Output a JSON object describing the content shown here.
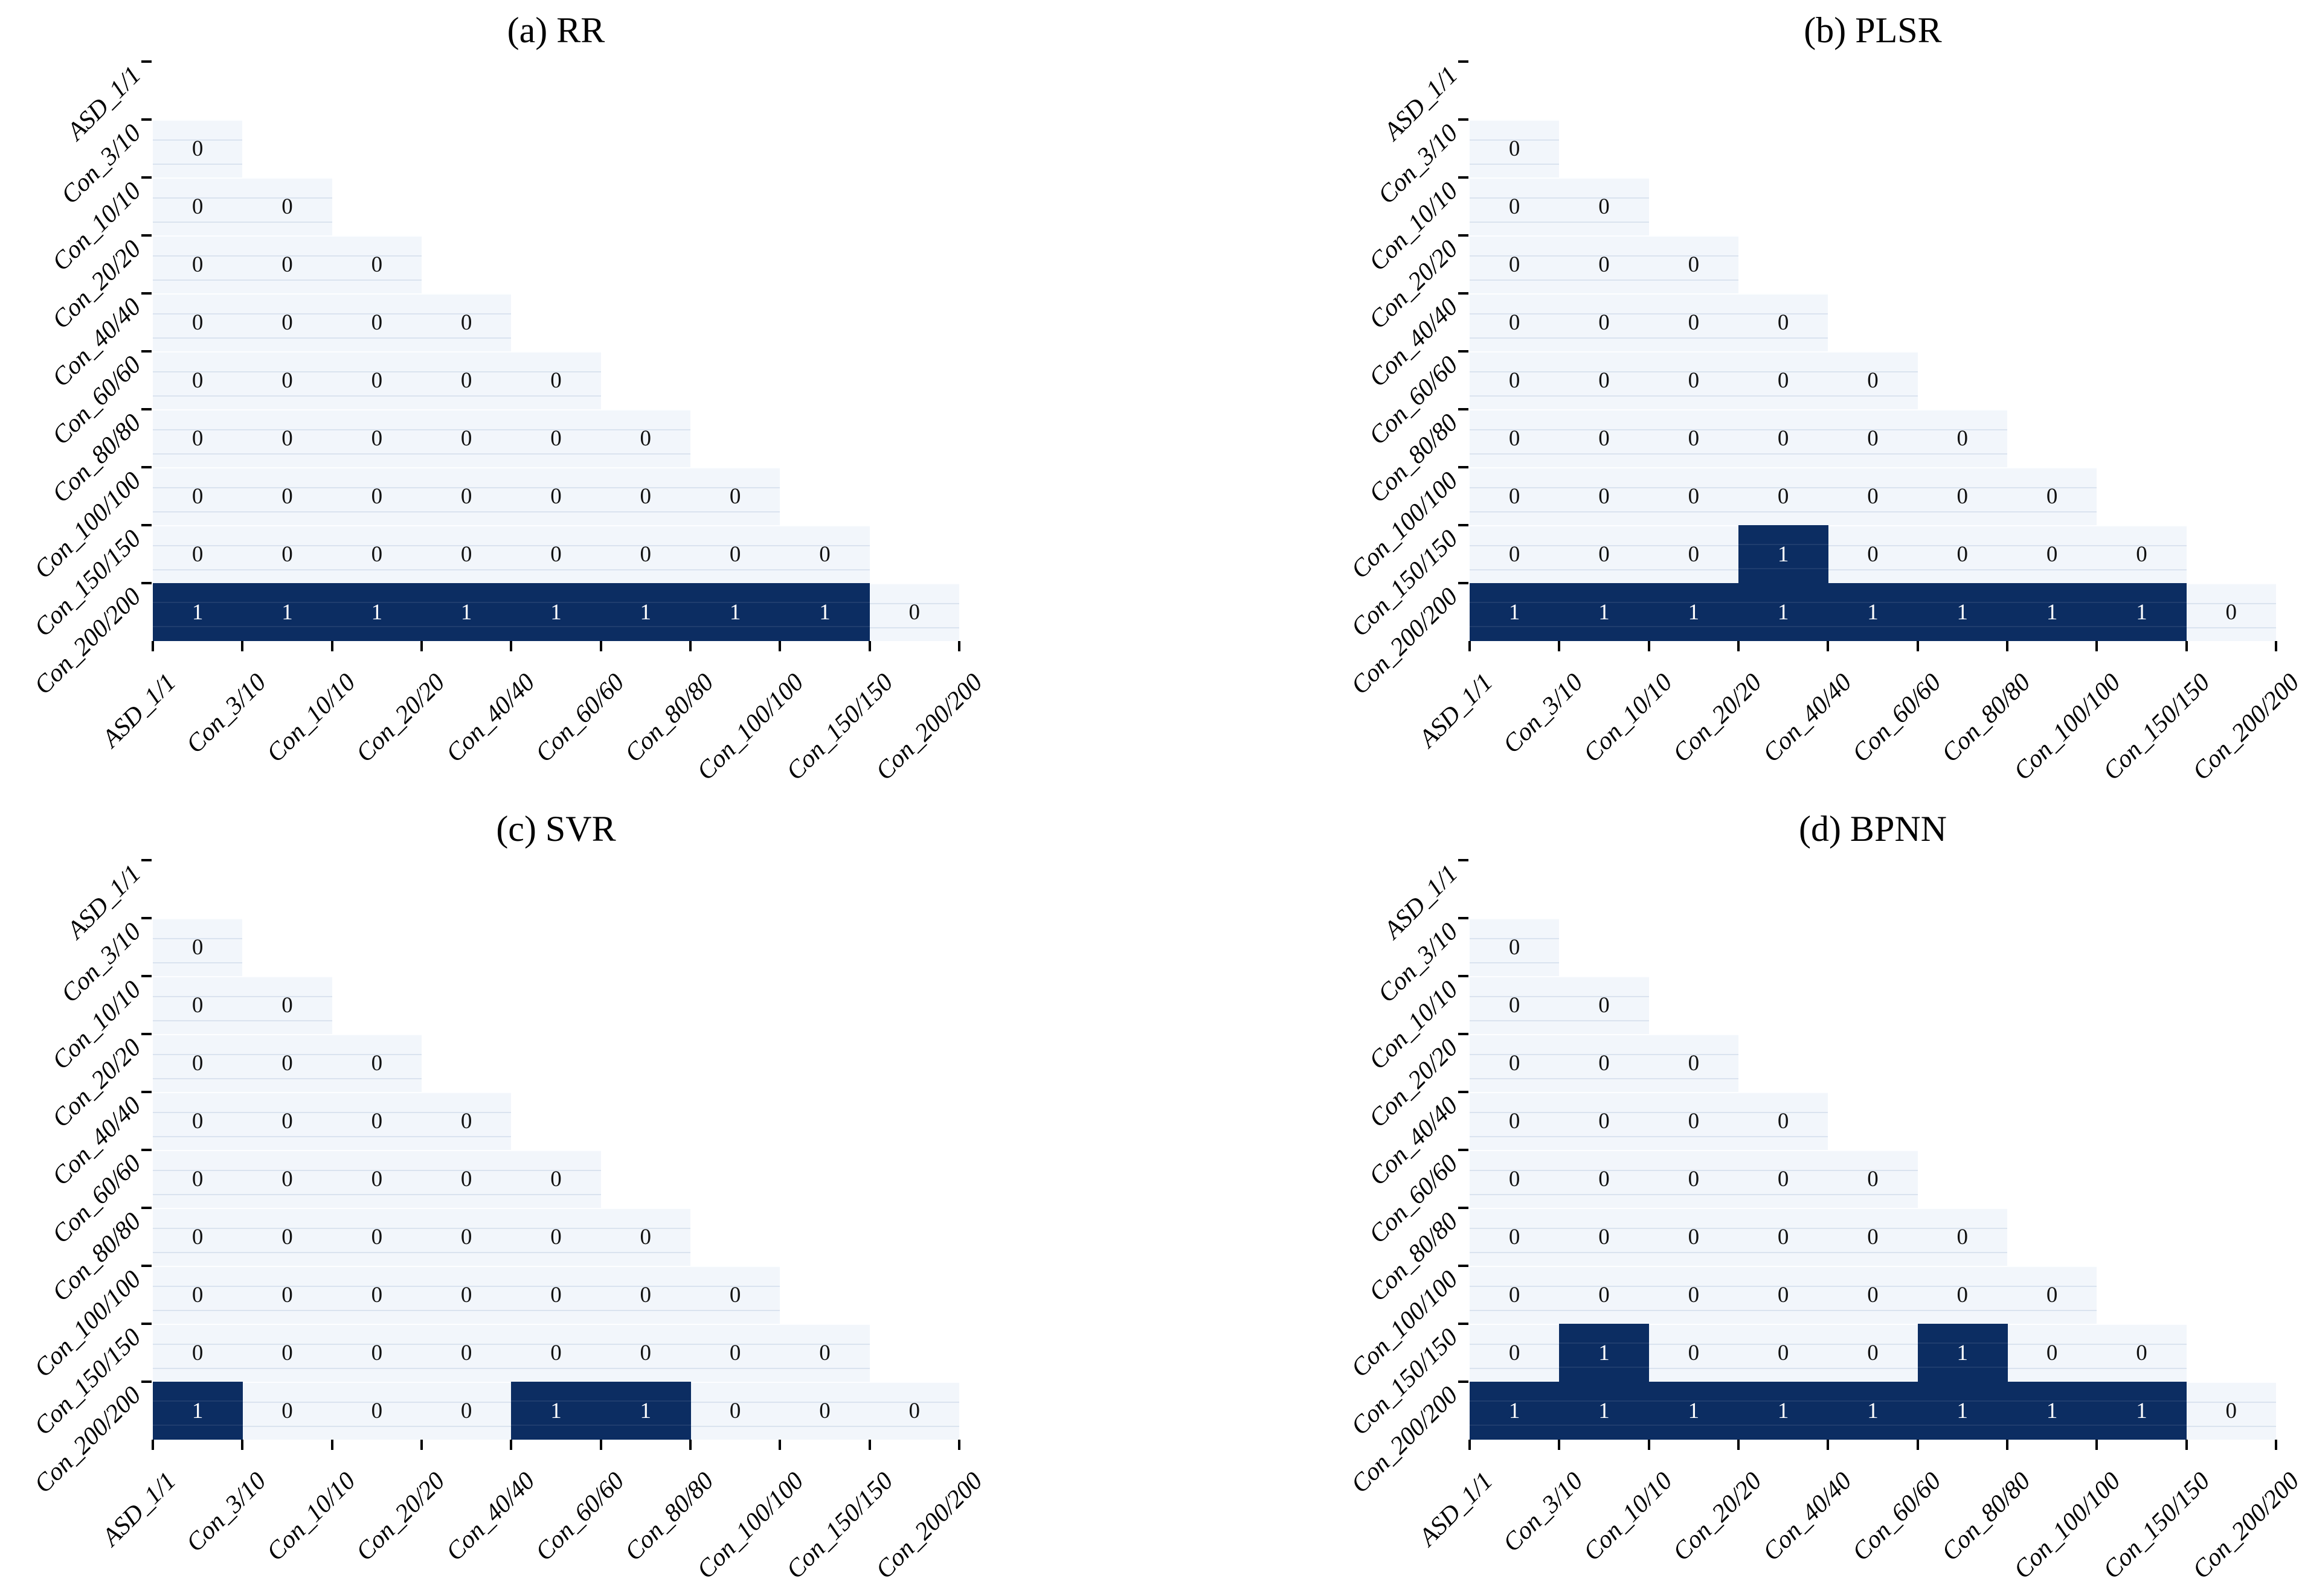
{
  "figure": {
    "background": "#ffffff",
    "panel_titles": [
      "(a) RR",
      "(b) PLSR",
      "(c) SVR",
      "(d) BPNN"
    ]
  },
  "colors": {
    "cell_one": "#0c2d62",
    "cell_zero": "#f2f6fb",
    "annot_one": "#ffffff",
    "annot_zero": "#111111",
    "tick": "#000000",
    "text": "#000000"
  },
  "chart_data": [
    {
      "id": "a",
      "type": "heatmap",
      "title": "(a) RR",
      "layout_hint": "lower-triangular matrix, rows Con_3/10..Con_200/200, cols ASD_1/1..Con_150/150, no legend, no colorbar",
      "categories": [
        "ASD_1/1",
        "Con_3/10",
        "Con_10/10",
        "Con_20/20",
        "Con_40/40",
        "Con_60/60",
        "Con_80/80",
        "Con_100/100",
        "Con_150/150",
        "Con_200/200"
      ],
      "value_colors": {
        "0": "#f2f6fb",
        "1": "#0c2d62"
      },
      "rows": [
        [
          0
        ],
        [
          0,
          0
        ],
        [
          0,
          0,
          0
        ],
        [
          0,
          0,
          0,
          0
        ],
        [
          0,
          0,
          0,
          0,
          0
        ],
        [
          0,
          0,
          0,
          0,
          0,
          0
        ],
        [
          0,
          0,
          0,
          0,
          0,
          0,
          0
        ],
        [
          0,
          0,
          0,
          0,
          0,
          0,
          0,
          0
        ],
        [
          1,
          1,
          1,
          1,
          1,
          1,
          1,
          1,
          0
        ]
      ]
    },
    {
      "id": "b",
      "type": "heatmap",
      "title": "(b) PLSR",
      "layout_hint": "lower-triangular matrix, rows Con_3/10..Con_200/200, cols ASD_1/1..Con_150/150, no legend, no colorbar",
      "categories": [
        "ASD_1/1",
        "Con_3/10",
        "Con_10/10",
        "Con_20/20",
        "Con_40/40",
        "Con_60/60",
        "Con_80/80",
        "Con_100/100",
        "Con_150/150",
        "Con_200/200"
      ],
      "value_colors": {
        "0": "#f2f6fb",
        "1": "#0c2d62"
      },
      "rows": [
        [
          0
        ],
        [
          0,
          0
        ],
        [
          0,
          0,
          0
        ],
        [
          0,
          0,
          0,
          0
        ],
        [
          0,
          0,
          0,
          0,
          0
        ],
        [
          0,
          0,
          0,
          0,
          0,
          0
        ],
        [
          0,
          0,
          0,
          0,
          0,
          0,
          0
        ],
        [
          0,
          0,
          0,
          1,
          0,
          0,
          0,
          0
        ],
        [
          1,
          1,
          1,
          1,
          1,
          1,
          1,
          1,
          0
        ]
      ]
    },
    {
      "id": "c",
      "type": "heatmap",
      "title": "(c) SVR",
      "layout_hint": "lower-triangular matrix, rows Con_3/10..Con_200/200, cols ASD_1/1..Con_150/150, no legend, no colorbar",
      "categories": [
        "ASD_1/1",
        "Con_3/10",
        "Con_10/10",
        "Con_20/20",
        "Con_40/40",
        "Con_60/60",
        "Con_80/80",
        "Con_100/100",
        "Con_150/150",
        "Con_200/200"
      ],
      "value_colors": {
        "0": "#f2f6fb",
        "1": "#0c2d62"
      },
      "rows": [
        [
          0
        ],
        [
          0,
          0
        ],
        [
          0,
          0,
          0
        ],
        [
          0,
          0,
          0,
          0
        ],
        [
          0,
          0,
          0,
          0,
          0
        ],
        [
          0,
          0,
          0,
          0,
          0,
          0
        ],
        [
          0,
          0,
          0,
          0,
          0,
          0,
          0
        ],
        [
          0,
          0,
          0,
          0,
          0,
          0,
          0,
          0
        ],
        [
          1,
          0,
          0,
          0,
          1,
          1,
          0,
          0,
          0
        ]
      ]
    },
    {
      "id": "d",
      "type": "heatmap",
      "title": "(d) BPNN",
      "layout_hint": "lower-triangular matrix, rows Con_3/10..Con_200/200, cols ASD_1/1..Con_150/150, no legend, no colorbar",
      "categories": [
        "ASD_1/1",
        "Con_3/10",
        "Con_10/10",
        "Con_20/20",
        "Con_40/40",
        "Con_60/60",
        "Con_80/80",
        "Con_100/100",
        "Con_150/150",
        "Con_200/200"
      ],
      "value_colors": {
        "0": "#f2f6fb",
        "1": "#0c2d62"
      },
      "rows": [
        [
          0
        ],
        [
          0,
          0
        ],
        [
          0,
          0,
          0
        ],
        [
          0,
          0,
          0,
          0
        ],
        [
          0,
          0,
          0,
          0,
          0
        ],
        [
          0,
          0,
          0,
          0,
          0,
          0
        ],
        [
          0,
          0,
          0,
          0,
          0,
          0,
          0
        ],
        [
          0,
          1,
          0,
          0,
          0,
          1,
          0,
          0
        ],
        [
          1,
          1,
          1,
          1,
          1,
          1,
          1,
          1,
          0
        ]
      ]
    }
  ]
}
